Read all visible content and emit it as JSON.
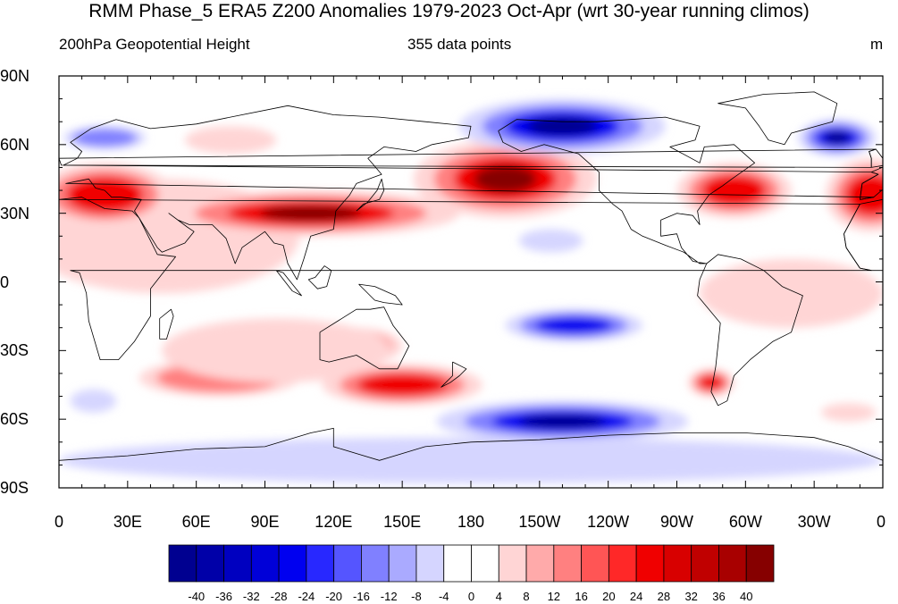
{
  "header": {
    "title": "RMM Phase_5 ERA5 Z200 Anomalies 1979-2023 Oct-Apr (wrt 30-year running climos)",
    "left_subtitle": "200hPa Geopotential Height",
    "center_subtitle": "355 data points",
    "units": "m"
  },
  "axes": {
    "lat_labels": [
      "90N",
      "60N",
      "30N",
      "0",
      "30S",
      "60S",
      "90S"
    ],
    "lon_labels": [
      "0",
      "30E",
      "60E",
      "90E",
      "120E",
      "150E",
      "180",
      "150W",
      "120W",
      "90W",
      "60W",
      "30W",
      "0"
    ]
  },
  "colorbar": {
    "levels": [
      "-40",
      "-36",
      "-32",
      "-28",
      "-24",
      "-20",
      "-16",
      "-12",
      "-8",
      "-4",
      "0",
      "4",
      "8",
      "12",
      "16",
      "20",
      "24",
      "28",
      "32",
      "36",
      "40"
    ],
    "colors": [
      "#000090",
      "#0000a8",
      "#0000c0",
      "#0000d8",
      "#0000f0",
      "#2828ff",
      "#5555ff",
      "#8080ff",
      "#aaaaff",
      "#d5d5ff",
      "#ffffff",
      "#ffffff",
      "#ffd5d5",
      "#ffaaaa",
      "#ff8080",
      "#ff5555",
      "#ff2828",
      "#f00000",
      "#d80000",
      "#c00000",
      "#a80000",
      "#860000"
    ]
  },
  "map": {
    "projection": "cylindrical equidistant",
    "lon_range": [
      0,
      360
    ],
    "lat_range": [
      -90,
      90
    ],
    "fill_colors": {
      "strong_positive": "#860000",
      "positive": "#f00000",
      "weak_positive": "#ff8080",
      "faint_positive": "#ffd5d5",
      "faint_negative": "#d5d5ff",
      "weak_negative": "#8080ff",
      "negative": "#0000f0",
      "strong_negative": "#000090"
    }
  }
}
